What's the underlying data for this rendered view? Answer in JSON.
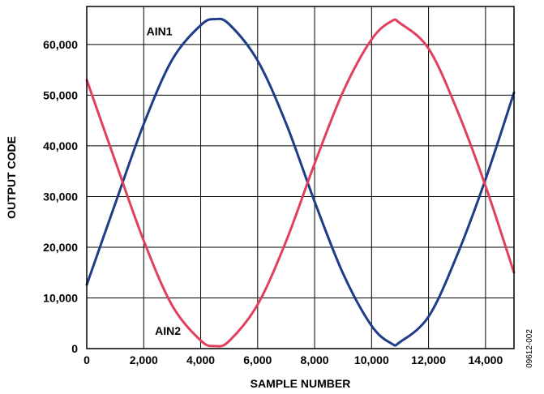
{
  "chart_data": {
    "type": "line",
    "xlabel": "SAMPLE NUMBER",
    "ylabel": "OUTPUT CODE",
    "xlim": [
      0,
      15000
    ],
    "ylim": [
      0,
      67500
    ],
    "x_ticks": [
      0,
      2000,
      4000,
      6000,
      8000,
      10000,
      12000,
      14000
    ],
    "x_tick_labels": [
      "0",
      "2,000",
      "4,000",
      "6,000",
      "8,000",
      "10,000",
      "12,000",
      "14,000"
    ],
    "y_ticks": [
      0,
      10000,
      20000,
      30000,
      40000,
      50000,
      60000
    ],
    "y_tick_labels": [
      "0",
      "10,000",
      "20,000",
      "30,000",
      "40,000",
      "50,000",
      "60,000"
    ],
    "grid": true,
    "x": [
      0,
      1000,
      2000,
      3000,
      4000,
      4500,
      5000,
      6000,
      7000,
      8000,
      9000,
      10000,
      10700,
      11000,
      12000,
      13000,
      14000,
      15000
    ],
    "series": [
      {
        "name": "AIN1",
        "color": "#1f3c88",
        "values": [
          12600,
          28600,
          44300,
          57000,
          63800,
          65000,
          64000,
          56800,
          44400,
          29000,
          14800,
          4500,
          1000,
          1300,
          6300,
          18400,
          33400,
          50500
        ]
      },
      {
        "name": "AIN2",
        "color": "#e0405e",
        "values": [
          53000,
          37000,
          21300,
          8500,
          1600,
          500,
          1500,
          8700,
          21200,
          36500,
          50700,
          61000,
          64600,
          64200,
          59200,
          47100,
          32100,
          15000
        ]
      }
    ],
    "annotations": [
      {
        "text": "AIN1",
        "series": 0
      },
      {
        "text": "AIN2",
        "series": 1
      }
    ],
    "figure_id": "09612-002"
  }
}
